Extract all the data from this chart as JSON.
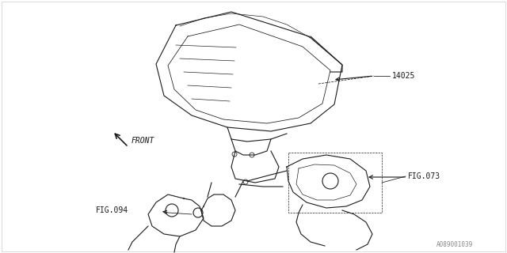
{
  "background_color": "#ffffff",
  "line_color": "#1a1a1a",
  "line_width": 0.8,
  "label_14025": "14025",
  "label_fig073": "FIG.073",
  "label_fig094": "FIG.094",
  "label_front": "FRONT",
  "watermark": "A089001039",
  "border_color": "#cccccc",
  "fig_width": 6.4,
  "fig_height": 3.2,
  "dpi": 100,
  "bolt_circles": [
    [
      296,
      195,
      3
    ],
    [
      318,
      196,
      3
    ],
    [
      310,
      230,
      3
    ]
  ]
}
